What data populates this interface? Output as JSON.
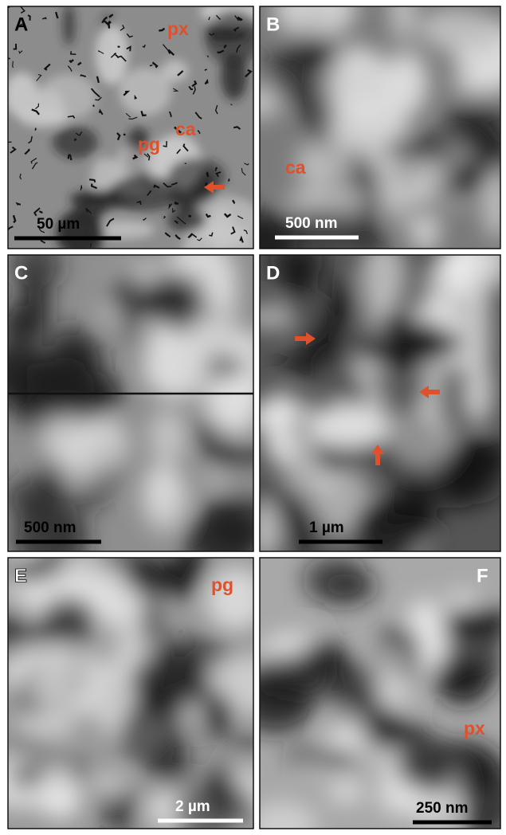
{
  "panels": [
    {
      "letter": "A",
      "labels": [
        "px",
        "ca",
        "pg"
      ],
      "scale_bar": "50 µm"
    },
    {
      "letter": "B",
      "labels": [
        "ca"
      ],
      "scale_bar": "500 nm"
    },
    {
      "letter": "C",
      "scale_bar": "500 nm"
    },
    {
      "letter": "D",
      "scale_bar": "1 µm"
    },
    {
      "letter": "E",
      "labels": [
        "pg"
      ],
      "scale_bar": "2 µm"
    },
    {
      "letter": "F",
      "labels": [
        "px"
      ],
      "scale_bar": "250 nm"
    }
  ]
}
